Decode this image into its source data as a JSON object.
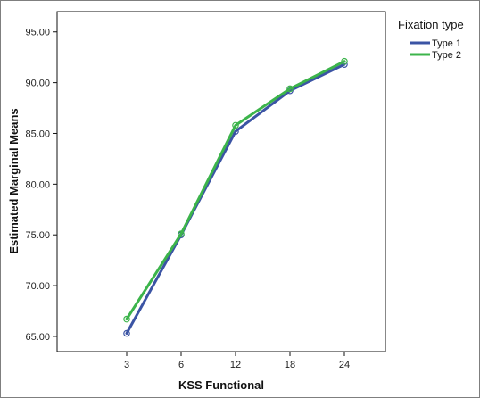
{
  "chart_data": {
    "type": "line",
    "xlabel": "KSS Functional",
    "ylabel": "Estimated Marginal Means",
    "categories": [
      "3",
      "6",
      "12",
      "18",
      "24"
    ],
    "y_ticks": [
      "65.00",
      "70.00",
      "75.00",
      "80.00",
      "85.00",
      "90.00",
      "95.00"
    ],
    "ylim": [
      63.5,
      97
    ],
    "grid": false,
    "legend": {
      "title": "Fixation type",
      "placement": "right-outside-top"
    },
    "series": [
      {
        "name": "Type 1",
        "color": "#3b54a4",
        "values": [
          65.3,
          75.0,
          85.2,
          89.2,
          91.8
        ]
      },
      {
        "name": "Type 2",
        "color": "#3cb44b",
        "values": [
          66.7,
          75.1,
          85.8,
          89.4,
          92.1
        ]
      }
    ]
  }
}
